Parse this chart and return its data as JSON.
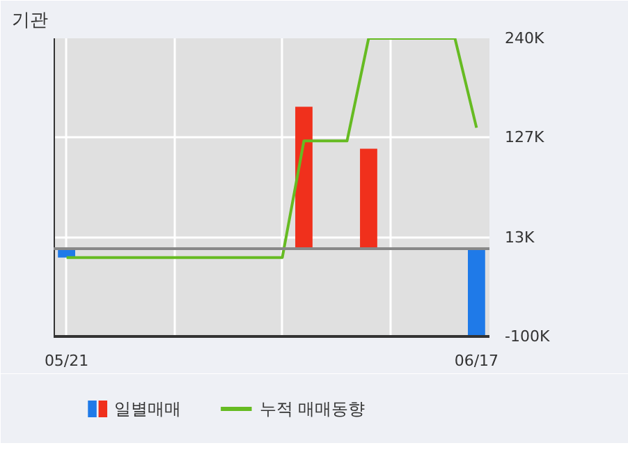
{
  "chart_data": {
    "type": "bar",
    "title": "기관",
    "categories": [
      "05/21",
      null,
      null,
      null,
      null,
      null,
      null,
      null,
      null,
      null,
      null,
      null,
      null,
      null,
      null,
      null,
      null,
      null,
      null,
      "06/17"
    ],
    "series": [
      {
        "name": "일별매매",
        "colors": [
          "#1f7ae8",
          null,
          null,
          null,
          null,
          null,
          null,
          null,
          null,
          null,
          null,
          "#f0301c",
          null,
          null,
          "#f0301c",
          null,
          null,
          null,
          null,
          "#1f7ae8"
        ],
        "values": [
          -10,
          null,
          null,
          null,
          null,
          null,
          null,
          null,
          null,
          null,
          null,
          162,
          null,
          null,
          114,
          null,
          null,
          null,
          null,
          -100
        ]
      },
      {
        "name": "누적 매매동향",
        "type": "line",
        "color": "#66bb22",
        "values": [
          -10,
          -10,
          -10,
          -10,
          -10,
          -10,
          -10,
          -10,
          -10,
          -10,
          -10,
          123,
          123,
          123,
          240,
          240,
          240,
          240,
          240,
          138
        ]
      }
    ],
    "ylim": [
      -100,
      240
    ],
    "yticks": [
      {
        "value": -100,
        "label": "-100K"
      },
      {
        "value": 13,
        "label": "13K"
      },
      {
        "value": 127,
        "label": "127K"
      },
      {
        "value": 240,
        "label": "240K"
      }
    ],
    "ref_lines": [
      {
        "axis": "y",
        "value": 0,
        "color": "#888888"
      }
    ],
    "grid": true,
    "legend": "bottom",
    "marker": "none",
    "line_style": "solid"
  }
}
